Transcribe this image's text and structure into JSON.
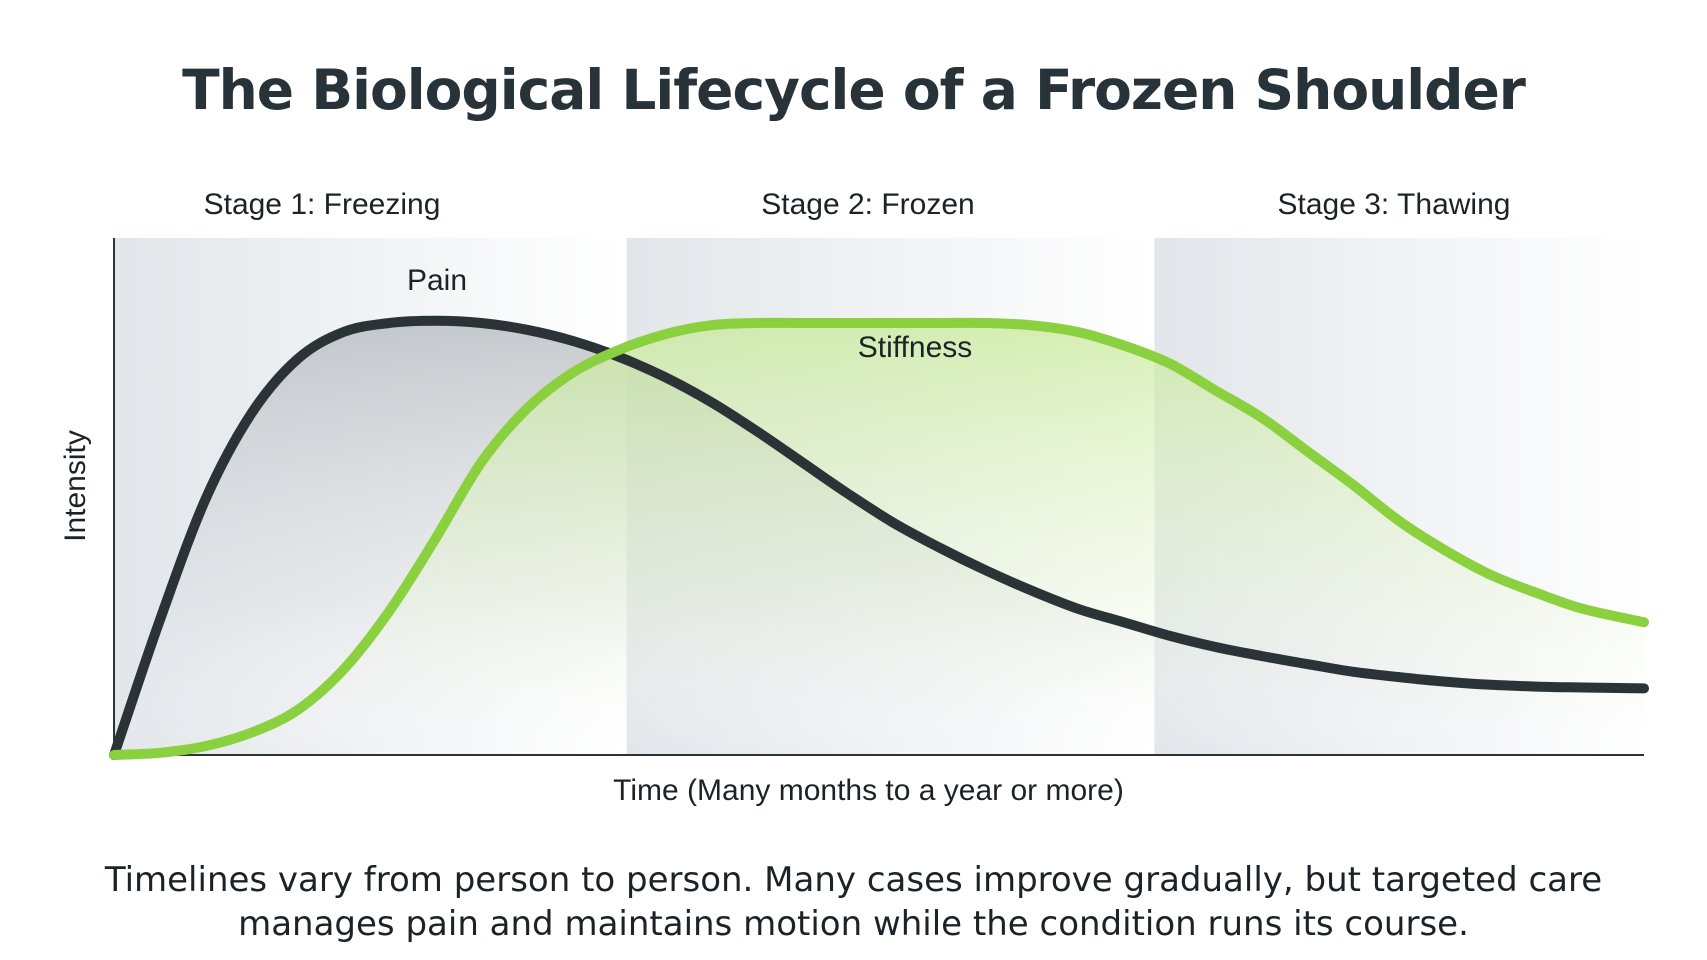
{
  "title": "The Biological Lifecycle of a Frozen Shoulder",
  "caption": [
    "Timelines vary from person to person. Many cases improve gradually, but targeted care",
    "manages pain and maintains motion while the condition runs its course."
  ],
  "chart_data": {
    "type": "area",
    "title": "The Biological Lifecycle of a Frozen Shoulder",
    "xlabel": "Time (Many months to a year or more)",
    "ylabel": "Intensity",
    "xlim": [
      0,
      100
    ],
    "ylim": [
      0,
      100
    ],
    "grid": false,
    "stages": [
      {
        "label": "Stage 1: Freezing",
        "start": 0,
        "end": 33.5
      },
      {
        "label": "Stage 2: Frozen",
        "start": 33.5,
        "end": 68
      },
      {
        "label": "Stage 3: Thawing",
        "start": 68,
        "end": 100
      }
    ],
    "x": [
      0,
      3,
      6,
      9,
      12,
      15,
      18,
      21,
      24,
      27,
      30,
      33,
      36,
      39,
      42,
      45,
      48,
      51,
      54,
      57,
      60,
      63,
      66,
      69,
      72,
      75,
      78,
      81,
      84,
      87,
      90,
      93,
      96,
      100
    ],
    "series": [
      {
        "name": "Pain",
        "color": "#2b3337",
        "values": [
          0,
          30,
          57,
          76,
          88,
          94,
          96,
          96.5,
          96,
          94.5,
          92,
          88.5,
          84,
          78.5,
          72,
          65,
          58,
          51.5,
          46,
          41,
          36.5,
          32.5,
          29.5,
          26.5,
          24,
          22,
          20.2,
          18.5,
          17.3,
          16.3,
          15.6,
          15.2,
          15,
          14.8
        ]
      },
      {
        "name": "Stiffness",
        "color": "#8ad03f",
        "values": [
          0,
          0.5,
          2,
          5,
          10,
          19,
          32,
          48,
          65,
          77,
          85,
          90,
          93.5,
          95.5,
          96,
          96,
          96,
          96,
          96,
          96,
          95.5,
          94,
          91,
          87,
          81,
          75,
          67.5,
          60,
          52,
          45.5,
          40,
          36,
          32.5,
          29.5
        ]
      }
    ]
  }
}
